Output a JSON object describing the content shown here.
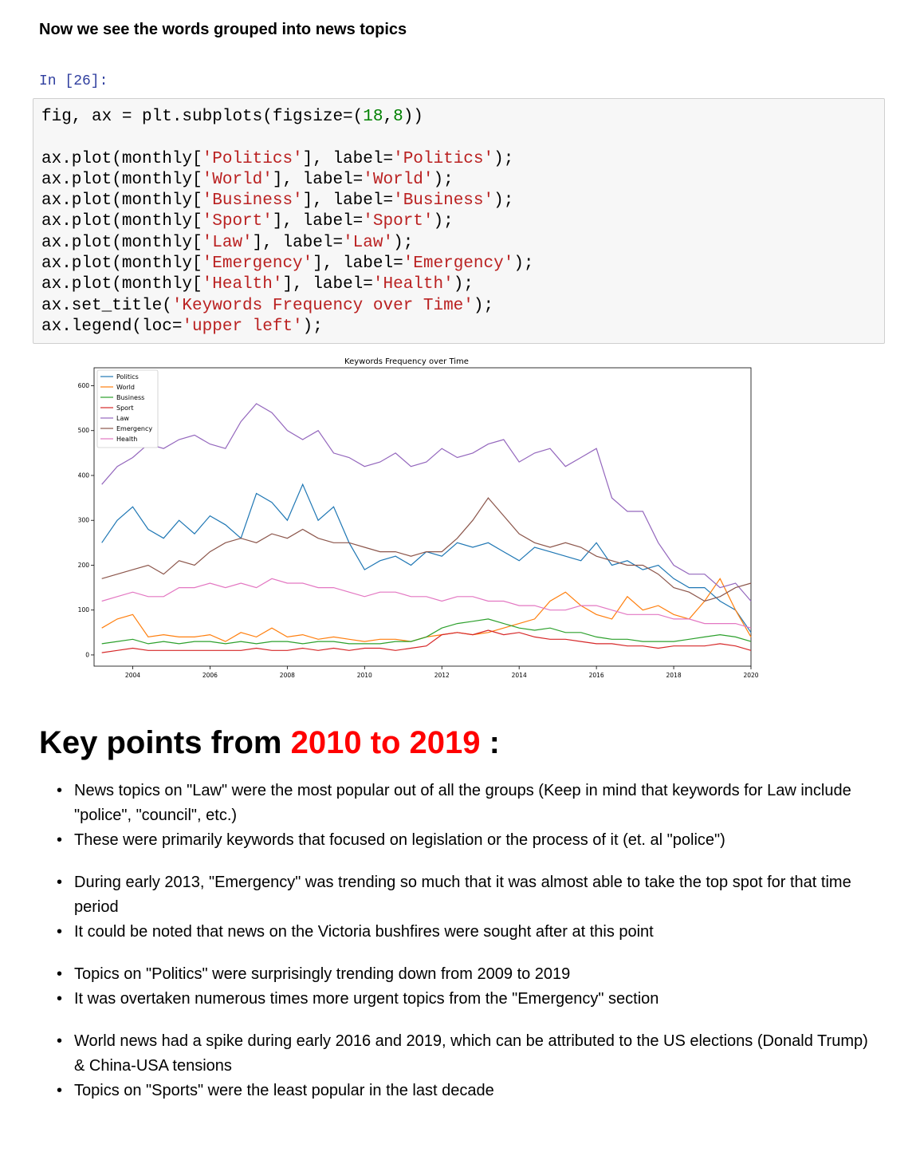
{
  "markdown_heading": "Now we see the words grouped into news topics",
  "cell": {
    "prompt": "In [26]:",
    "code": [
      [
        [
          "fig, ax = plt.subplots(figsize=(",
          ""
        ],
        [
          "18",
          "n"
        ],
        [
          ",",
          ""
        ],
        [
          "8",
          "n"
        ],
        [
          "))",
          ""
        ]
      ],
      [],
      [
        [
          "ax.plot(monthly[",
          ""
        ],
        [
          "'Politics'",
          "s"
        ],
        [
          "], label=",
          ""
        ],
        [
          "'Politics'",
          "s"
        ],
        [
          ");",
          ""
        ]
      ],
      [
        [
          "ax.plot(monthly[",
          ""
        ],
        [
          "'World'",
          "s"
        ],
        [
          "], label=",
          ""
        ],
        [
          "'World'",
          "s"
        ],
        [
          ");",
          ""
        ]
      ],
      [
        [
          "ax.plot(monthly[",
          ""
        ],
        [
          "'Business'",
          "s"
        ],
        [
          "], label=",
          ""
        ],
        [
          "'Business'",
          "s"
        ],
        [
          ");",
          ""
        ]
      ],
      [
        [
          "ax.plot(monthly[",
          ""
        ],
        [
          "'Sport'",
          "s"
        ],
        [
          "], label=",
          ""
        ],
        [
          "'Sport'",
          "s"
        ],
        [
          ");",
          ""
        ]
      ],
      [
        [
          "ax.plot(monthly[",
          ""
        ],
        [
          "'Law'",
          "s"
        ],
        [
          "], label=",
          ""
        ],
        [
          "'Law'",
          "s"
        ],
        [
          ");",
          ""
        ]
      ],
      [
        [
          "ax.plot(monthly[",
          ""
        ],
        [
          "'Emergency'",
          "s"
        ],
        [
          "], label=",
          ""
        ],
        [
          "'Emergency'",
          "s"
        ],
        [
          ");",
          ""
        ]
      ],
      [
        [
          "ax.plot(monthly[",
          ""
        ],
        [
          "'Health'",
          "s"
        ],
        [
          "], label=",
          ""
        ],
        [
          "'Health'",
          "s"
        ],
        [
          ");",
          ""
        ]
      ],
      [
        [
          "ax.set_title(",
          ""
        ],
        [
          "'Keywords Frequency over Time'",
          "s"
        ],
        [
          ");",
          ""
        ]
      ],
      [
        [
          "ax.legend(loc=",
          ""
        ],
        [
          "'upper left'",
          "s"
        ],
        [
          ");",
          ""
        ]
      ]
    ]
  },
  "chart_data": {
    "type": "line",
    "title": "Keywords Frequency over Time",
    "xlim": [
      2003.0,
      2020.0
    ],
    "ylim": [
      -25,
      640
    ],
    "x_ticks": [
      2004,
      2006,
      2008,
      2010,
      2012,
      2014,
      2016,
      2018,
      2020
    ],
    "y_ticks": [
      0,
      100,
      200,
      300,
      400,
      500,
      600
    ],
    "legend_position": "upper-left",
    "grid": false,
    "x": [
      2003.2,
      2003.6,
      2004.0,
      2004.4,
      2004.8,
      2005.2,
      2005.6,
      2006.0,
      2006.4,
      2006.8,
      2007.2,
      2007.6,
      2008.0,
      2008.4,
      2008.8,
      2009.2,
      2009.6,
      2010.0,
      2010.4,
      2010.8,
      2011.2,
      2011.6,
      2012.0,
      2012.4,
      2012.8,
      2013.2,
      2013.6,
      2014.0,
      2014.4,
      2014.8,
      2015.2,
      2015.6,
      2016.0,
      2016.4,
      2016.8,
      2017.2,
      2017.6,
      2018.0,
      2018.4,
      2018.8,
      2019.2,
      2019.6,
      2020.0
    ],
    "series": [
      {
        "name": "Politics",
        "color": "#1f77b4",
        "values": [
          250,
          300,
          330,
          280,
          260,
          300,
          270,
          310,
          290,
          260,
          360,
          340,
          300,
          380,
          300,
          330,
          250,
          190,
          210,
          220,
          200,
          230,
          220,
          250,
          240,
          250,
          230,
          210,
          240,
          230,
          220,
          210,
          250,
          200,
          210,
          190,
          200,
          170,
          150,
          150,
          120,
          100,
          50
        ]
      },
      {
        "name": "World",
        "color": "#ff7f0e",
        "values": [
          60,
          80,
          90,
          40,
          45,
          40,
          40,
          45,
          30,
          50,
          40,
          60,
          40,
          45,
          35,
          40,
          35,
          30,
          35,
          35,
          30,
          40,
          45,
          50,
          45,
          50,
          60,
          70,
          80,
          120,
          140,
          110,
          90,
          80,
          130,
          100,
          110,
          90,
          80,
          120,
          170,
          100,
          40
        ]
      },
      {
        "name": "Business",
        "color": "#2ca02c",
        "values": [
          25,
          30,
          35,
          25,
          30,
          25,
          30,
          30,
          25,
          30,
          25,
          30,
          30,
          25,
          30,
          30,
          25,
          25,
          25,
          30,
          30,
          40,
          60,
          70,
          75,
          80,
          70,
          60,
          55,
          60,
          50,
          50,
          40,
          35,
          35,
          30,
          30,
          30,
          35,
          40,
          45,
          40,
          30
        ]
      },
      {
        "name": "Sport",
        "color": "#d62728",
        "values": [
          5,
          10,
          15,
          10,
          10,
          10,
          10,
          10,
          10,
          10,
          15,
          10,
          10,
          15,
          10,
          15,
          10,
          15,
          15,
          10,
          15,
          20,
          45,
          50,
          45,
          55,
          45,
          50,
          40,
          35,
          35,
          30,
          25,
          25,
          20,
          20,
          15,
          20,
          20,
          20,
          25,
          20,
          10
        ]
      },
      {
        "name": "Law",
        "color": "#9467bd",
        "values": [
          380,
          420,
          440,
          470,
          460,
          480,
          490,
          470,
          460,
          520,
          560,
          540,
          500,
          480,
          500,
          450,
          440,
          420,
          430,
          450,
          420,
          430,
          460,
          440,
          450,
          470,
          480,
          430,
          450,
          460,
          420,
          440,
          460,
          350,
          320,
          320,
          250,
          200,
          180,
          180,
          150,
          160,
          120
        ]
      },
      {
        "name": "Emergency",
        "color": "#8c564b",
        "values": [
          170,
          180,
          190,
          200,
          180,
          210,
          200,
          230,
          250,
          260,
          250,
          270,
          260,
          280,
          260,
          250,
          250,
          240,
          230,
          230,
          220,
          230,
          230,
          260,
          300,
          350,
          310,
          270,
          250,
          240,
          250,
          240,
          220,
          210,
          200,
          200,
          180,
          150,
          140,
          120,
          130,
          150,
          160
        ]
      },
      {
        "name": "Health",
        "color": "#e377c2",
        "values": [
          120,
          130,
          140,
          130,
          130,
          150,
          150,
          160,
          150,
          160,
          150,
          170,
          160,
          160,
          150,
          150,
          140,
          130,
          140,
          140,
          130,
          130,
          120,
          130,
          130,
          120,
          120,
          110,
          110,
          100,
          100,
          110,
          110,
          100,
          90,
          90,
          90,
          80,
          80,
          70,
          70,
          70,
          60
        ]
      }
    ]
  },
  "key_points": {
    "title_pre": "Key points from ",
    "title_highlight": "2010 to 2019",
    "title_post": " :",
    "items": [
      {
        "text": "News topics on \"Law\" were the most popular out of all the groups (Keep in mind that keywords for Law include \"police\", \"council\", etc.)",
        "gap": false
      },
      {
        "text": "These were primarily keywords that focused on legislation or the process of it (et. al \"police\")",
        "gap": false
      },
      {
        "text": "During early 2013, \"Emergency\" was trending so much that it was almost able to take the top spot for that time period",
        "gap": true
      },
      {
        "text": "It could be noted that news on the Victoria bushfires were sought after at this point",
        "gap": false
      },
      {
        "text": "Topics on \"Politics\" were surprisingly trending down from 2009 to 2019",
        "gap": true
      },
      {
        "text": "It was overtaken numerous times more urgent topics from the \"Emergency\" section",
        "gap": false
      },
      {
        "text": "World news had a spike during early 2016 and 2019, which can be attributed to the US elections (Donald Trump) & China-USA tensions",
        "gap": true
      },
      {
        "text": "Topics on \"Sports\" were the least popular in the last decade",
        "gap": false
      }
    ]
  }
}
